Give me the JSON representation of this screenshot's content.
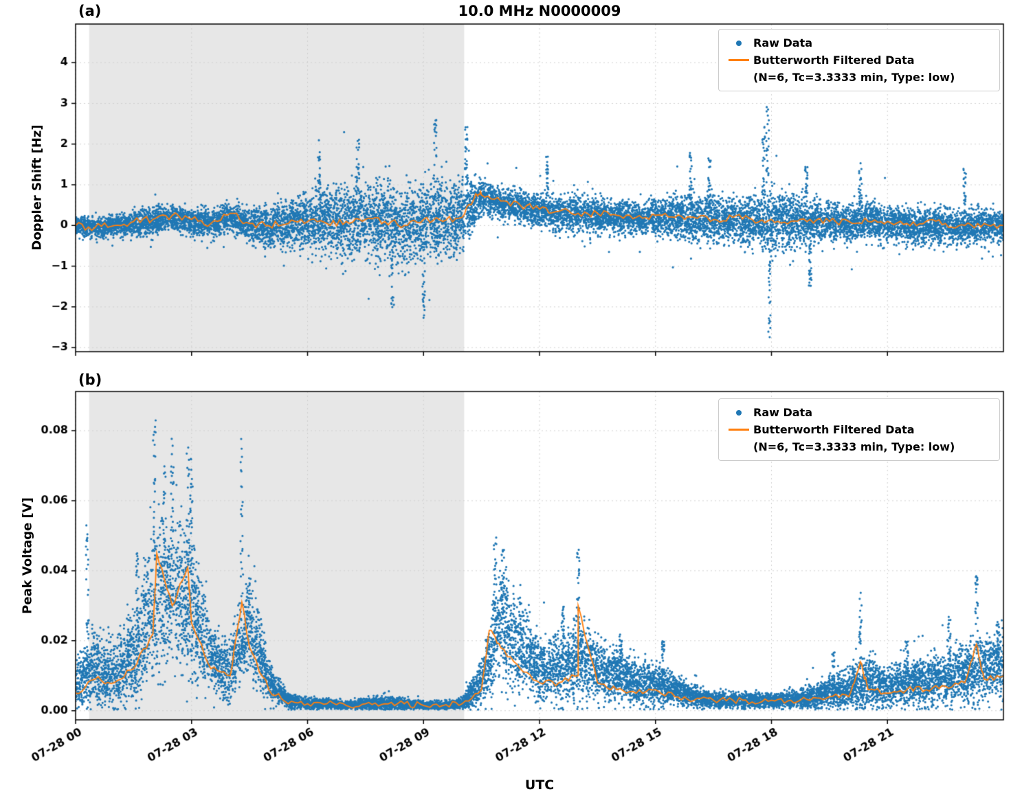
{
  "figure": {
    "title": "10.0 MHz N0000009",
    "panel_a_label": "(a)",
    "panel_b_label": "(b)",
    "xlabel": "UTC",
    "legend": {
      "raw_label": "Raw Data",
      "filtered_label_line1": "Butterworth Filtered Data",
      "filtered_label_line2": "(N=6, Tc=3.3333 min, Type: low)"
    },
    "colors": {
      "raw": "#1f77b4",
      "filtered": "#ff7f0e",
      "night_shading": "#e7e7e7",
      "grid": "#cfcfcf",
      "axis": "#000000"
    }
  },
  "chart_data": [
    {
      "id": "doppler-shift-panel",
      "type": "scatter",
      "title": "10.0 MHz N0000009",
      "ylabel": "Doppler Shift [Hz]",
      "xlabel": "",
      "ylim": [
        -3.1,
        4.95
      ],
      "yticks": [
        -3,
        -2,
        -1,
        0,
        1,
        2,
        3,
        4
      ],
      "ytick_labels": [
        "−3",
        "−2",
        "−1",
        "0",
        "1",
        "2",
        "3",
        "4"
      ],
      "xlim_hours": [
        0,
        24
      ],
      "xticks_hours": [
        0,
        3,
        6,
        9,
        12,
        15,
        18,
        21
      ],
      "xtick_labels": [
        "07-28 00",
        "07-28 03",
        "07-28 06",
        "07-28 09",
        "07-28 12",
        "07-28 15",
        "07-28 18",
        "07-28 21"
      ],
      "shaded_hours": [
        0.35,
        10.05
      ],
      "raw_envelope": {
        "x_step_hours": 0.5,
        "mean": [
          0.0,
          -0.05,
          0.0,
          0.05,
          0.1,
          0.2,
          0.1,
          0.05,
          0.2,
          0.0,
          0.0,
          0.0,
          0.1,
          0.1,
          0.1,
          0.1,
          0.1,
          0.0,
          0.1,
          0.1,
          0.2,
          0.7,
          0.55,
          0.45,
          0.35,
          0.3,
          0.3,
          0.25,
          0.2,
          0.2,
          0.2,
          0.2,
          0.15,
          0.15,
          0.15,
          0.1,
          0.1,
          0.1,
          0.1,
          0.1,
          0.05,
          0.1,
          0.05,
          0.0,
          0.0,
          0.0,
          -0.05,
          0.0,
          0.0
        ],
        "spread": [
          0.22,
          0.22,
          0.25,
          0.28,
          0.3,
          0.28,
          0.28,
          0.3,
          0.32,
          0.38,
          0.45,
          0.55,
          0.65,
          0.75,
          0.8,
          0.8,
          0.85,
          0.85,
          0.9,
          0.9,
          0.8,
          0.4,
          0.35,
          0.35,
          0.38,
          0.4,
          0.42,
          0.4,
          0.35,
          0.35,
          0.4,
          0.5,
          0.55,
          0.55,
          0.5,
          0.55,
          0.8,
          0.6,
          0.5,
          0.45,
          0.45,
          0.45,
          0.4,
          0.4,
          0.4,
          0.4,
          0.4,
          0.38,
          0.35
        ]
      },
      "raw_spikes": [
        [
          6.3,
          2.1
        ],
        [
          7.3,
          2.2
        ],
        [
          8.2,
          -2.1
        ],
        [
          9.0,
          -2.3
        ],
        [
          9.3,
          2.6
        ],
        [
          10.1,
          2.45
        ],
        [
          12.2,
          1.75
        ],
        [
          15.9,
          1.8
        ],
        [
          16.4,
          1.7
        ],
        [
          17.8,
          2.5
        ],
        [
          17.9,
          3.05
        ],
        [
          17.95,
          -2.8
        ],
        [
          18.9,
          1.45
        ],
        [
          19.0,
          -1.5
        ],
        [
          20.3,
          1.6
        ],
        [
          23.0,
          1.5
        ]
      ],
      "filtered": {
        "x_step_hours": 0.5,
        "y": [
          0.0,
          -0.05,
          0.0,
          0.1,
          0.15,
          0.25,
          0.15,
          0.05,
          0.3,
          0.05,
          0.0,
          0.05,
          0.1,
          0.05,
          0.1,
          0.15,
          0.1,
          0.0,
          0.15,
          0.1,
          0.2,
          0.75,
          0.6,
          0.5,
          0.4,
          0.35,
          0.3,
          0.3,
          0.25,
          0.2,
          0.25,
          0.2,
          0.2,
          0.15,
          0.2,
          0.15,
          0.15,
          0.1,
          0.15,
          0.1,
          0.1,
          0.1,
          0.1,
          0.05,
          0.1,
          0.05,
          0.0,
          0.05,
          0.0
        ],
        "peaks": [
          [
            10.35,
            0.78
          ]
        ]
      },
      "line_jitter": 0.09
    },
    {
      "id": "peak-voltage-panel",
      "type": "scatter",
      "title": "",
      "ylabel": "Peak Voltage [V]",
      "xlabel": "UTC",
      "ylim": [
        -0.0026,
        0.0912
      ],
      "yticks": [
        0.0,
        0.02,
        0.04,
        0.06,
        0.08
      ],
      "ytick_labels": [
        "0.00",
        "0.02",
        "0.04",
        "0.06",
        "0.08"
      ],
      "xlim_hours": [
        0,
        24
      ],
      "xticks_hours": [
        0,
        3,
        6,
        9,
        12,
        15,
        18,
        21
      ],
      "xtick_labels": [
        "07-28 00",
        "07-28 03",
        "07-28 06",
        "07-28 09",
        "07-28 12",
        "07-28 15",
        "07-28 18",
        "07-28 21"
      ],
      "shaded_hours": [
        0.35,
        10.05
      ],
      "raw_envelope": {
        "x_step_hours": 0.5,
        "mean": [
          0.008,
          0.012,
          0.01,
          0.015,
          0.03,
          0.035,
          0.03,
          0.015,
          0.012,
          0.025,
          0.008,
          0.003,
          0.002,
          0.002,
          0.0015,
          0.002,
          0.002,
          0.002,
          0.0015,
          0.0015,
          0.002,
          0.008,
          0.025,
          0.018,
          0.012,
          0.012,
          0.015,
          0.012,
          0.01,
          0.008,
          0.008,
          0.006,
          0.004,
          0.003,
          0.003,
          0.003,
          0.003,
          0.003,
          0.004,
          0.005,
          0.006,
          0.008,
          0.007,
          0.008,
          0.008,
          0.009,
          0.01,
          0.012,
          0.013
        ],
        "spread": [
          0.006,
          0.01,
          0.008,
          0.012,
          0.02,
          0.02,
          0.02,
          0.008,
          0.008,
          0.015,
          0.005,
          0.002,
          0.0015,
          0.0015,
          0.001,
          0.0015,
          0.002,
          0.0015,
          0.001,
          0.001,
          0.0015,
          0.006,
          0.015,
          0.012,
          0.008,
          0.009,
          0.012,
          0.008,
          0.007,
          0.006,
          0.006,
          0.004,
          0.003,
          0.002,
          0.002,
          0.002,
          0.002,
          0.002,
          0.003,
          0.004,
          0.005,
          0.007,
          0.005,
          0.006,
          0.006,
          0.007,
          0.008,
          0.008,
          0.009
        ]
      },
      "raw_spikes": [
        [
          0.3,
          0.055
        ],
        [
          1.6,
          0.045
        ],
        [
          2.05,
          0.085
        ],
        [
          2.3,
          0.07
        ],
        [
          2.5,
          0.078
        ],
        [
          2.9,
          0.077
        ],
        [
          3.0,
          0.072
        ],
        [
          4.3,
          0.082
        ],
        [
          10.85,
          0.05
        ],
        [
          11.05,
          0.047
        ],
        [
          12.6,
          0.031
        ],
        [
          13.0,
          0.046
        ],
        [
          14.1,
          0.022
        ],
        [
          15.2,
          0.02
        ],
        [
          19.6,
          0.017
        ],
        [
          20.3,
          0.035
        ],
        [
          21.5,
          0.02
        ],
        [
          22.6,
          0.028
        ],
        [
          23.3,
          0.04
        ],
        [
          23.85,
          0.026
        ]
      ],
      "filtered": {
        "x_step_hours": 0.5,
        "y": [
          0.005,
          0.009,
          0.008,
          0.012,
          0.022,
          0.03,
          0.025,
          0.012,
          0.01,
          0.018,
          0.006,
          0.002,
          0.002,
          0.002,
          0.0015,
          0.002,
          0.002,
          0.002,
          0.0015,
          0.0015,
          0.002,
          0.006,
          0.018,
          0.012,
          0.008,
          0.008,
          0.01,
          0.008,
          0.006,
          0.005,
          0.006,
          0.004,
          0.003,
          0.003,
          0.003,
          0.0025,
          0.003,
          0.003,
          0.003,
          0.004,
          0.004,
          0.006,
          0.005,
          0.006,
          0.006,
          0.007,
          0.008,
          0.009,
          0.01
        ],
        "peaks": [
          [
            2.1,
            0.045
          ],
          [
            2.9,
            0.041
          ],
          [
            4.3,
            0.031
          ],
          [
            10.7,
            0.023
          ],
          [
            13.0,
            0.03
          ],
          [
            20.3,
            0.014
          ],
          [
            23.3,
            0.019
          ]
        ]
      },
      "line_jitter": 0.0009
    }
  ]
}
